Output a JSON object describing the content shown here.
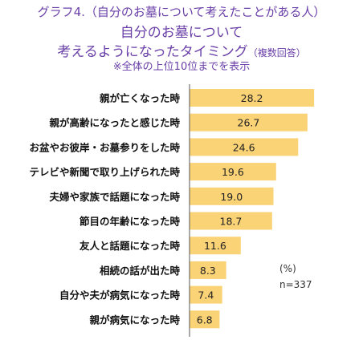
{
  "title": {
    "line1": "グラフ4.（自分のお墓について考えたことがある人）",
    "line2": "自分のお墓について",
    "line3_main": "考えるようになったタイミング",
    "line3_note": "（複数回答）",
    "line4": "※全体の上位10位までを表示"
  },
  "unit_label": "(%)",
  "sample_label": "n=337",
  "colors": {
    "bar": "#fbd377",
    "title": "#6a3fa8",
    "axis": "#555555"
  },
  "chart_data": {
    "type": "bar",
    "orientation": "horizontal",
    "categories": [
      "親が亡くなった時",
      "親が高齢になったと感じた時",
      "お盆やお彼岸・お墓参りをした時",
      "テレビや新聞で取り上げられた時",
      "夫婦や家族で話題になった時",
      "節目の年齢になった時",
      "友人と話題になった時",
      "相続の話が出た時",
      "自分や夫が病気になった時",
      "親が病気になった時"
    ],
    "values": [
      28.2,
      26.7,
      24.6,
      19.6,
      19.0,
      18.7,
      11.6,
      8.3,
      7.4,
      6.8
    ],
    "value_labels": [
      "28.2",
      "26.7",
      "24.6",
      "19.6",
      "19.0",
      "18.7",
      "11.6",
      "8.3",
      "7.4",
      "6.8"
    ],
    "xlim": [
      0,
      30
    ]
  }
}
